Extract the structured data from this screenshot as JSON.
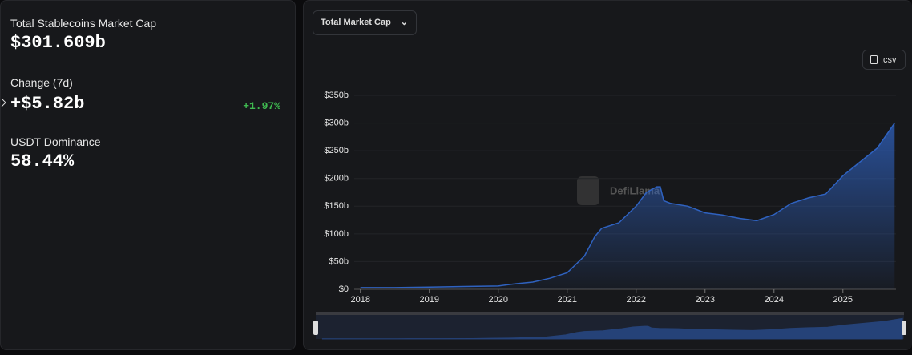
{
  "stats": {
    "market_cap": {
      "label": "Total Stablecoins Market Cap",
      "value": "$301.609b"
    },
    "change": {
      "label": "Change (7d)",
      "value": "+$5.82b",
      "percent": "+1.97%"
    },
    "dominance": {
      "label": "USDT Dominance",
      "value": "58.44%"
    }
  },
  "controls": {
    "dropdown": "Total Market Cap",
    "csv_button": ".csv",
    "watermark": "DefiLlama"
  },
  "chart_data": {
    "type": "area",
    "color": "#2f62c0",
    "x": [
      2018.0,
      2018.5,
      2019.0,
      2019.5,
      2020.0,
      2020.25,
      2020.5,
      2020.75,
      2021.0,
      2021.25,
      2021.4,
      2021.5,
      2021.75,
      2022.0,
      2022.15,
      2022.3,
      2022.35,
      2022.4,
      2022.5,
      2022.75,
      2023.0,
      2023.25,
      2023.5,
      2023.75,
      2024.0,
      2024.25,
      2024.5,
      2024.75,
      2025.0,
      2025.25,
      2025.5,
      2025.75
    ],
    "values": [
      3,
      3,
      4,
      5,
      6,
      10,
      13,
      20,
      30,
      60,
      95,
      110,
      120,
      150,
      175,
      185,
      185,
      160,
      155,
      150,
      138,
      134,
      128,
      124,
      135,
      155,
      165,
      172,
      205,
      230,
      255,
      300
    ],
    "xlim": [
      2017.91,
      2025.77
    ],
    "xticks": [
      2018,
      2019,
      2020,
      2021,
      2022,
      2023,
      2024,
      2025
    ],
    "ylim": [
      0,
      350
    ],
    "yticks": [
      {
        "value": 0,
        "label": "$0"
      },
      {
        "value": 50,
        "label": "$50b"
      },
      {
        "value": 100,
        "label": "$100b"
      },
      {
        "value": 150,
        "label": "$150b"
      },
      {
        "value": 200,
        "label": "$200b"
      },
      {
        "value": 250,
        "label": "$250b"
      },
      {
        "value": 300,
        "label": "$300b"
      },
      {
        "value": 350,
        "label": "$350b"
      }
    ],
    "grid": true
  }
}
